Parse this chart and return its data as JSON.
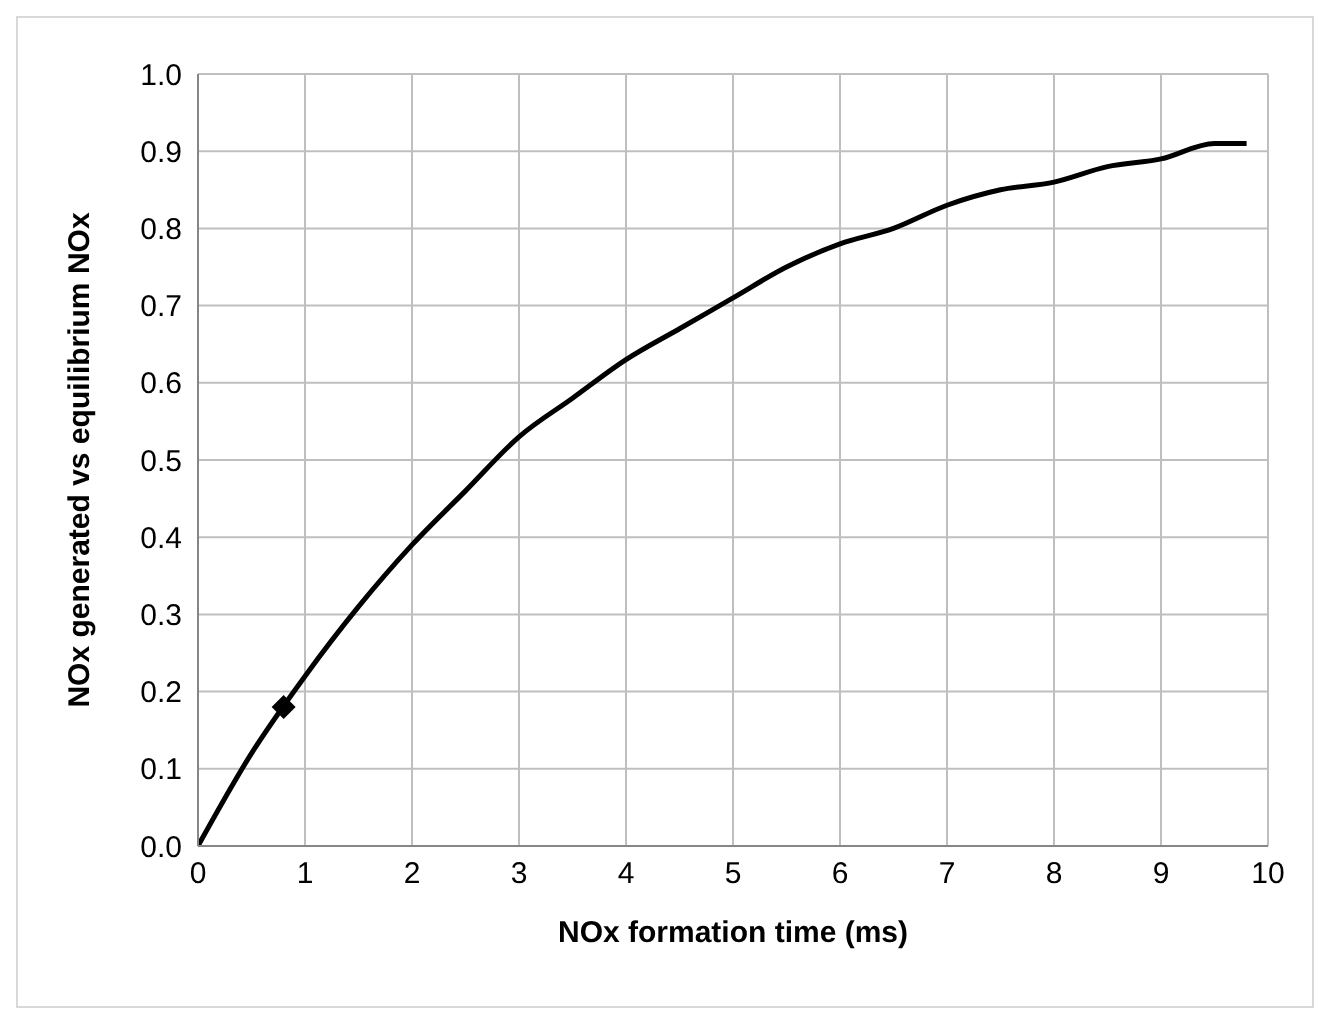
{
  "chart_data": {
    "type": "line",
    "xlabel": "NOx formation time (ms)",
    "ylabel": "NOx generated vs equilibrium NOx",
    "xlim": [
      0,
      10
    ],
    "xticks": [
      0,
      1,
      2,
      3,
      4,
      5,
      6,
      7,
      8,
      9,
      10
    ],
    "ylim": [
      0,
      1
    ],
    "yticks": [
      {
        "value": 0,
        "label": "0.0"
      },
      {
        "value": 0.1,
        "label": "0.1"
      },
      {
        "value": 0.2,
        "label": "0.2"
      },
      {
        "value": 0.3,
        "label": "0.3"
      },
      {
        "value": 0.4,
        "label": "0.4"
      },
      {
        "value": 0.5,
        "label": "0.5"
      },
      {
        "value": 0.6,
        "label": "0.6"
      },
      {
        "value": 0.7,
        "label": "0.7"
      },
      {
        "value": 0.8,
        "label": "0.8"
      },
      {
        "value": 0.9,
        "label": "0.9"
      },
      {
        "value": 1,
        "label": "1.0"
      }
    ],
    "grid": true,
    "series": [
      {
        "color": "#000000",
        "marker": "none",
        "line_style": "solid",
        "x": [
          0,
          0.5,
          1,
          1.5,
          2,
          2.5,
          3,
          3.5,
          4,
          4.5,
          5,
          5.5,
          6,
          6.5,
          7,
          7.5,
          8,
          8.5,
          9,
          9.5,
          9.8
        ],
        "values": [
          0,
          0.12,
          0.22,
          0.31,
          0.39,
          0.46,
          0.53,
          0.58,
          0.63,
          0.67,
          0.71,
          0.75,
          0.78,
          0.8,
          0.83,
          0.85,
          0.86,
          0.88,
          0.89,
          0.91,
          0.91
        ]
      },
      {
        "type": "scatter",
        "color": "#000000",
        "marker": "diamond",
        "x": [
          0.8
        ],
        "values": [
          0.18
        ]
      }
    ]
  }
}
